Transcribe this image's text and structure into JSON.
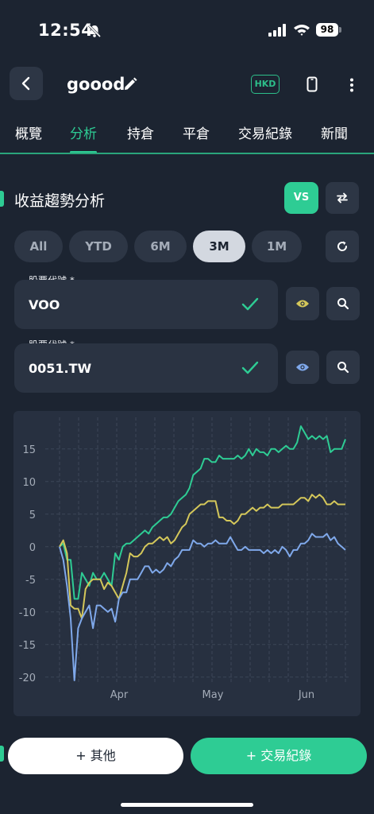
{
  "status_bar": {
    "time": "12:54",
    "battery": "98",
    "icons": [
      "bell-slash-icon",
      "signal-icon",
      "wifi-icon",
      "battery-icon"
    ]
  },
  "header": {
    "title": "goood",
    "currency": "HKD",
    "icons": [
      "chevron-left-icon",
      "pencil-icon",
      "phone-icon",
      "more-vertical-icon"
    ]
  },
  "tabs": [
    {
      "label": "概覽",
      "active": false
    },
    {
      "label": "分析",
      "active": true
    },
    {
      "label": "持倉",
      "active": false
    },
    {
      "label": "平倉",
      "active": false
    },
    {
      "label": "交易紀錄",
      "active": false
    },
    {
      "label": "新聞",
      "active": false
    }
  ],
  "section": {
    "title": "收益趨勢分析",
    "vs_label": "VS"
  },
  "periods": [
    {
      "label": "All",
      "active": false
    },
    {
      "label": "YTD",
      "active": false
    },
    {
      "label": "6M",
      "active": false
    },
    {
      "label": "3M",
      "active": true
    },
    {
      "label": "1M",
      "active": false
    }
  ],
  "stocks": [
    {
      "label": "股票代號 *",
      "value": "VOO",
      "eye_color": "#d4c75a"
    },
    {
      "label": "股票代號 *",
      "value": "0051.TW",
      "eye_color": "#7fa8ea"
    }
  ],
  "buttons": {
    "other": "+ 其他",
    "trade": "+ 交易紀錄"
  },
  "colors": {
    "accent": "#2ecc94",
    "background": "#1c2431",
    "card": "#273040"
  },
  "chart_data": {
    "type": "line",
    "x_ticks": [
      "Apr",
      "May",
      "Jun"
    ],
    "ylim": [
      -21,
      19
    ],
    "y_ticks": [
      15,
      10,
      5,
      0,
      -5,
      -10,
      -15,
      -20
    ],
    "grid": true,
    "series": [
      {
        "color": "#2ecc94",
        "values": [
          0,
          0.5,
          -2,
          -2,
          -8,
          -8,
          -4,
          -5,
          -6,
          -4,
          -5,
          -5,
          -4,
          -5,
          -6,
          -1,
          -2,
          0,
          0.5,
          0.5,
          1,
          1.5,
          2,
          2.5,
          2,
          3,
          3.5,
          4,
          4.5,
          4.5,
          5,
          6,
          7,
          7.5,
          8,
          9,
          11,
          11.5,
          12,
          13.5,
          13.5,
          13,
          13,
          14,
          13.5,
          13.5,
          13.5,
          13.5,
          14,
          13.5,
          14,
          15,
          14,
          15,
          14.5,
          14.5,
          14,
          15,
          15,
          14.5,
          15,
          15.5,
          15,
          15,
          16,
          18.5,
          17.5,
          16.5,
          17,
          16.5,
          17,
          16.5,
          17,
          14.5,
          15,
          15,
          15,
          16.5
        ]
      },
      {
        "color": "#d4c75a",
        "values": [
          0,
          1,
          -1,
          -9,
          -9.5,
          -9.5,
          -11,
          -6.5,
          -5.5,
          -5,
          -5,
          -5,
          -6.5,
          -5.5,
          -6,
          -7,
          -8,
          -6,
          -4,
          -1,
          -1.5,
          -1.5,
          -1,
          0,
          0.5,
          0.5,
          1,
          1.5,
          1,
          1.5,
          0.5,
          1,
          2,
          3,
          3.5,
          5,
          5.5,
          6,
          6.5,
          6.5,
          7,
          7,
          7,
          4.5,
          4.5,
          4,
          4,
          3.5,
          4,
          5,
          5,
          5.5,
          6,
          5.5,
          6,
          6,
          6.5,
          6,
          6,
          6,
          6.5,
          6.5,
          6.5,
          6.5,
          7,
          7.5,
          7.5,
          7,
          8,
          7.5,
          8,
          7.5,
          6.5,
          6.5,
          7,
          6.5,
          6.5,
          6.5
        ]
      },
      {
        "color": "#7fa8ea",
        "values": [
          0,
          -2,
          -6,
          -11,
          -20.5,
          -12.5,
          -11,
          -10,
          -9,
          -12.5,
          -9,
          -9,
          -9.5,
          -10,
          -9.5,
          -11.5,
          -8,
          -7,
          -7,
          -5,
          -5,
          -5,
          -4,
          -3,
          -3,
          -4,
          -3.5,
          -4,
          -3.5,
          -2.5,
          -3,
          -2,
          -1.5,
          -0.5,
          -0.5,
          -0.5,
          1,
          0.5,
          0.5,
          0,
          0.5,
          0.5,
          1,
          0.5,
          0.5,
          0.5,
          1.5,
          0.5,
          -0.5,
          -0.5,
          0,
          -0.5,
          -0.5,
          -0.5,
          -0.5,
          -1,
          -0.5,
          -1,
          -0.5,
          -1,
          0,
          -0.5,
          -1.5,
          -0.5,
          -0.5,
          0.5,
          0.5,
          1,
          2,
          1.5,
          1.5,
          1.5,
          2,
          1,
          1.5,
          0.5,
          0,
          -0.5
        ]
      }
    ]
  }
}
